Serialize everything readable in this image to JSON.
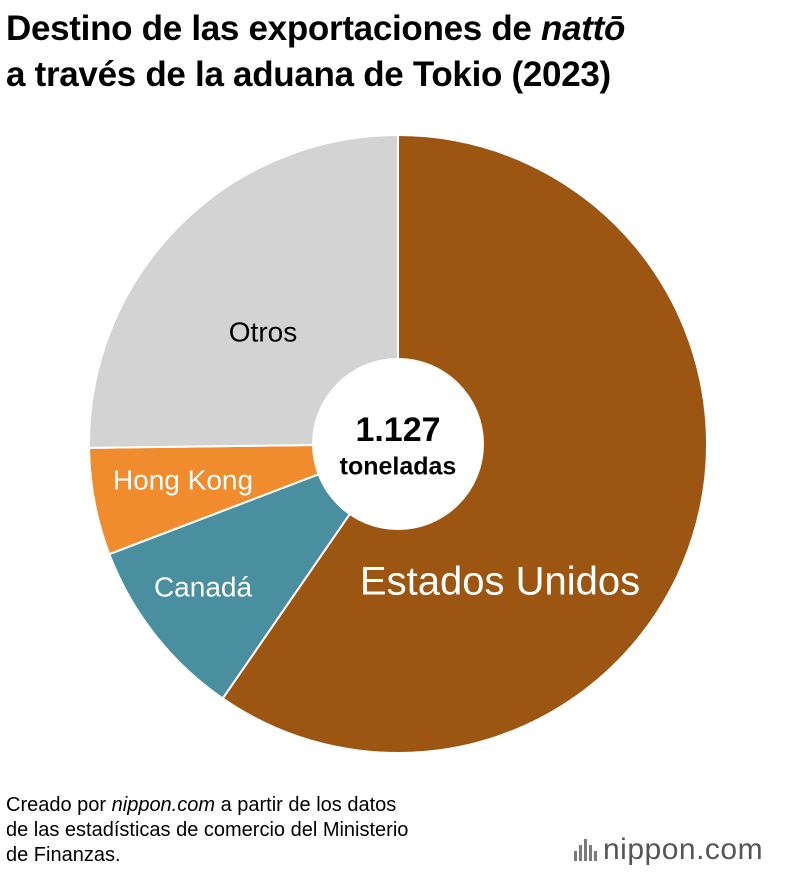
{
  "title": {
    "line1_prefix": "Destino de las exportaciones de ",
    "line1_italic": "nattō",
    "line2": "a través de la aduana de Tokio (2023)"
  },
  "center_label": {
    "value": "1.127",
    "unit": "toneladas"
  },
  "footer": {
    "line1_prefix": "Creado por ",
    "line1_italic": "nippon.com",
    "line1_suffix": " a partir de los datos",
    "line2": "de las estadísticas de comercio del Ministerio",
    "line3": "de Finanzas."
  },
  "logo": {
    "text": "nippon.com"
  },
  "chart_data": {
    "type": "pie",
    "title": "Destino de las exportaciones de nattō a través de la aduana de Tokio (2023)",
    "total": 1127,
    "total_unit": "toneladas",
    "start_angle_deg": 0,
    "direction": "clockwise",
    "slices": [
      {
        "label": "Estados Unidos",
        "share_pct": 59.6,
        "color": "#9c5612",
        "label_color": "#ffffff"
      },
      {
        "label": "Canadá",
        "share_pct": 9.6,
        "color": "#4a8fa0",
        "label_color": "#ffffff"
      },
      {
        "label": "Hong Kong",
        "share_pct": 5.6,
        "color": "#f08c2e",
        "label_color": "#ffffff"
      },
      {
        "label": "Otros",
        "share_pct": 25.2,
        "color": "#d3d3d3",
        "label_color": "#000000"
      }
    ]
  }
}
